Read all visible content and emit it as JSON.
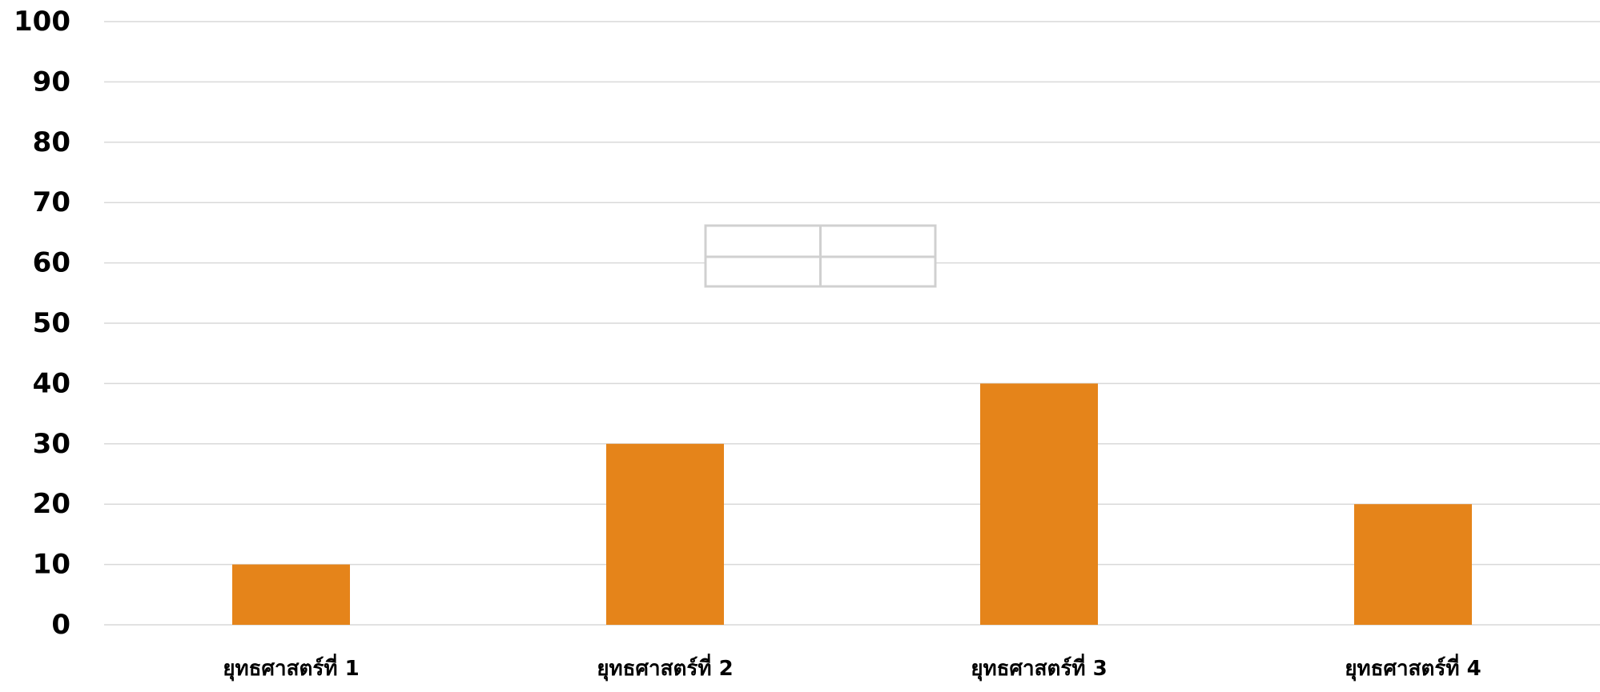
{
  "chart_data": {
    "type": "bar",
    "categories": [
      "ยุทธศาสตร์ที่ 1",
      "ยุทธศาสตร์ที่ 2",
      "ยุทธศาสตร์ที่ 3",
      "ยุทธศาสตร์ที่ 4"
    ],
    "values": [
      10,
      30,
      40,
      20
    ],
    "ylim": [
      0,
      100
    ],
    "yticks": [
      0,
      10,
      20,
      30,
      40,
      50,
      60,
      70,
      80,
      90,
      100
    ],
    "title": "",
    "xlabel": "",
    "ylabel": "",
    "grid": true,
    "legend": "none",
    "bar_color": "#E5841A",
    "grid_color": "#D9D9D9"
  }
}
